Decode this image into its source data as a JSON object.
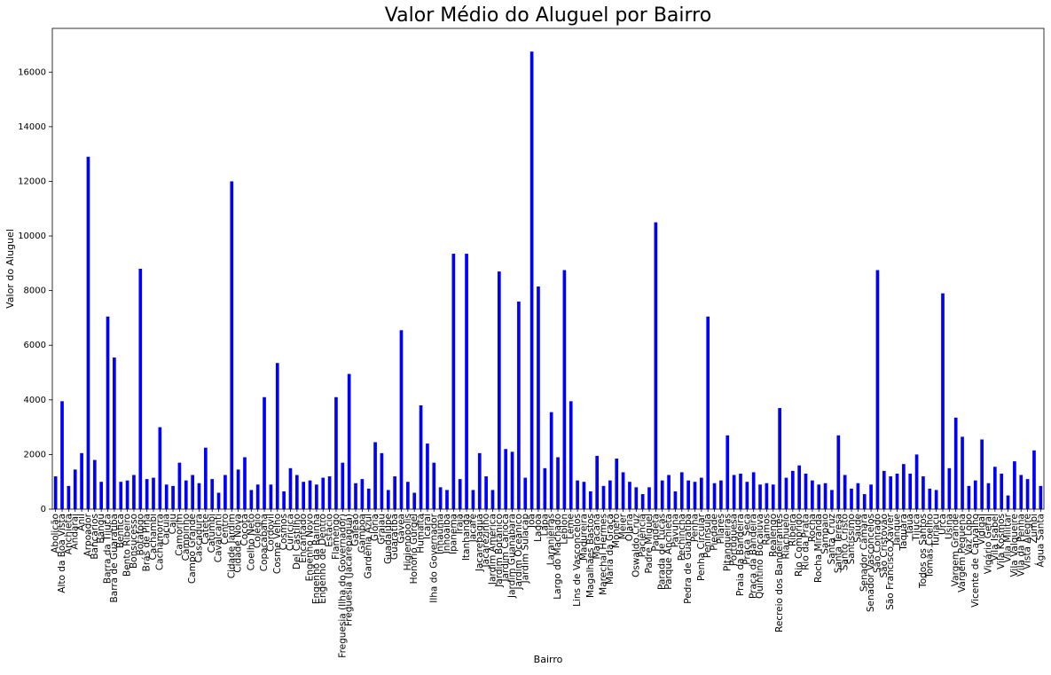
{
  "chart_data": {
    "type": "bar",
    "title": "Valor Médio do Aluguel por Bairro",
    "xlabel": "Bairro",
    "ylabel": "Valor do Aluguel",
    "color": "#0000ff",
    "ylim": [
      0,
      17600
    ],
    "yticks": [
      0,
      2000,
      4000,
      6000,
      8000,
      10000,
      12000,
      14000,
      16000
    ],
    "categories": [
      "Abolição",
      "Alto da Boa Vista",
      "Anchieta",
      "Andaraí",
      "Anil",
      "Arpoador",
      "Bancários",
      "Bangu",
      "Barra da Tijuca",
      "Barra de Guaratiba",
      "Benfica",
      "Bento Ribeiro",
      "Bonsucesso",
      "Botafogo",
      "Brás de Pina",
      "Cachambi",
      "Cachamorra",
      "Cacuia",
      "Caju",
      "Camorim",
      "Campinho",
      "Campo Grande",
      "Cascadura",
      "Catete",
      "Catumbi",
      "Cavalcanti",
      "Centro",
      "Cidade Jardim",
      "Cidade Nova",
      "Cocotá",
      "Coelho Neto",
      "Colégio",
      "Copacabana",
      "Cordovil",
      "Cosme Velho",
      "Cosmos",
      "Curicica",
      "Del Castilho",
      "Encantado",
      "Engenho Novo",
      "Engenho da Rainha",
      "Engenho de Dentro",
      "Estácio",
      "Flamengo",
      "Freguesia (Ilha do Governador)",
      "Freguesia (Jacarepaguá)",
      "Galeão",
      "Gamboa",
      "Gardênia Azul",
      "Glória",
      "Grajaú",
      "Guadalupe",
      "Guaratiba",
      "Gávea",
      "Higienópolis",
      "Honório Gurgel",
      "Humaitá",
      "Icaraí",
      "Ilha do Governador",
      "Inhaúma",
      "Inhoaíba",
      "Ipanema",
      "Irajá",
      "Itanhangá",
      "Jacaré",
      "Jacarepaguá",
      "Jacarezinho",
      "Jardim América",
      "Jardim Botânico",
      "Jardim Carioca",
      "Jardim Guanabara",
      "Jardim Oceânico",
      "Jardim Sulacap",
      "Joá",
      "Lagoa",
      "Lapa",
      "Laranjeiras",
      "Largo do Machado",
      "Leblon",
      "Leme",
      "Lins de Vasconcelos",
      "Madureira",
      "Magalhães Bastos",
      "Maracanã",
      "Marechal Hermes",
      "Maria da Graça",
      "Moneró",
      "Méier",
      "Olaria",
      "Oswaldo Cruz",
      "Paciência",
      "Padre Miguel",
      "Paquetá",
      "Parada de Lucas",
      "Parque Anchieta",
      "Pavuna",
      "Pechincha",
      "Pedra de Guaratiba",
      "Penha",
      "Penha Circular",
      "Península",
      "Piedade",
      "Pilares",
      "Pitangueiras",
      "Portuguesa",
      "Praia da Bandeira",
      "Praça Seca",
      "Praça da Bandeira",
      "Quintino Bocaiúva",
      "Ramos",
      "Realengo",
      "Recreio dos Bandeirantes",
      "Riachuelo",
      "Ribeira",
      "Rio Comprido",
      "Rio da Prata",
      "Rocha",
      "Rocha Miranda",
      "Sampaio",
      "Santa Cruz",
      "Santa Teresa",
      "Santo Cristo",
      "Santíssimo",
      "Saúde",
      "Senador Camará",
      "Senador Vasconcelos",
      "São Conrado",
      "São Cristóvão",
      "São Francisco Xavier",
      "Tanque",
      "Taquara",
      "Tauá",
      "Tijuca",
      "Todos os Santos",
      "Tomás Coelho",
      "Turiaçu",
      "Urca",
      "Usina",
      "Vargem Grande",
      "Vargem Pequena",
      "Vaz Lobo",
      "Vicente de Carvalho",
      "Vidigal",
      "Vigário Geral",
      "Vila Isabel",
      "Vila Kosmos",
      "Vila Militar",
      "Vila Valqueire",
      "Vila da Penha",
      "Vista Alegre",
      "Zumbi",
      "Água Santa"
    ],
    "values": [
      1200,
      3950,
      850,
      1450,
      2050,
      12900,
      1800,
      1000,
      7050,
      5550,
      1000,
      1050,
      1250,
      8800,
      1100,
      1150,
      3000,
      900,
      850,
      1700,
      1050,
      1250,
      950,
      2250,
      1100,
      600,
      1250,
      12000,
      1450,
      1900,
      700,
      900,
      4100,
      900,
      5350,
      650,
      1500,
      1250,
      1000,
      1050,
      900,
      1150,
      1200,
      4100,
      1700,
      4950,
      950,
      1100,
      750,
      2450,
      2050,
      700,
      1200,
      6550,
      1000,
      600,
      3800,
      2400,
      1700,
      800,
      700,
      9350,
      1100,
      9350,
      700,
      2050,
      1200,
      700,
      8700,
      2200,
      2100,
      7600,
      1150,
      16750,
      8150,
      1500,
      3550,
      1900,
      8750,
      3950,
      1050,
      1000,
      650,
      1950,
      850,
      1050,
      1850,
      1350,
      1000,
      800,
      550,
      800,
      10500,
      1050,
      1250,
      650,
      1350,
      1050,
      1000,
      1150,
      7050,
      950,
      1050,
      2700,
      1250,
      1300,
      1000,
      1350,
      900,
      950,
      900,
      3700,
      1150,
      1400,
      1600,
      1300,
      1050,
      900,
      950,
      700,
      2700,
      1250,
      750,
      950,
      550,
      900,
      8750,
      1400,
      1200,
      1300,
      1650,
      1300,
      2000,
      1200,
      750,
      700,
      7900,
      1500,
      3350,
      2650,
      850,
      1050,
      2550,
      950,
      1550,
      1300,
      500,
      1750,
      1250,
      1100,
      2150,
      850
    ]
  }
}
